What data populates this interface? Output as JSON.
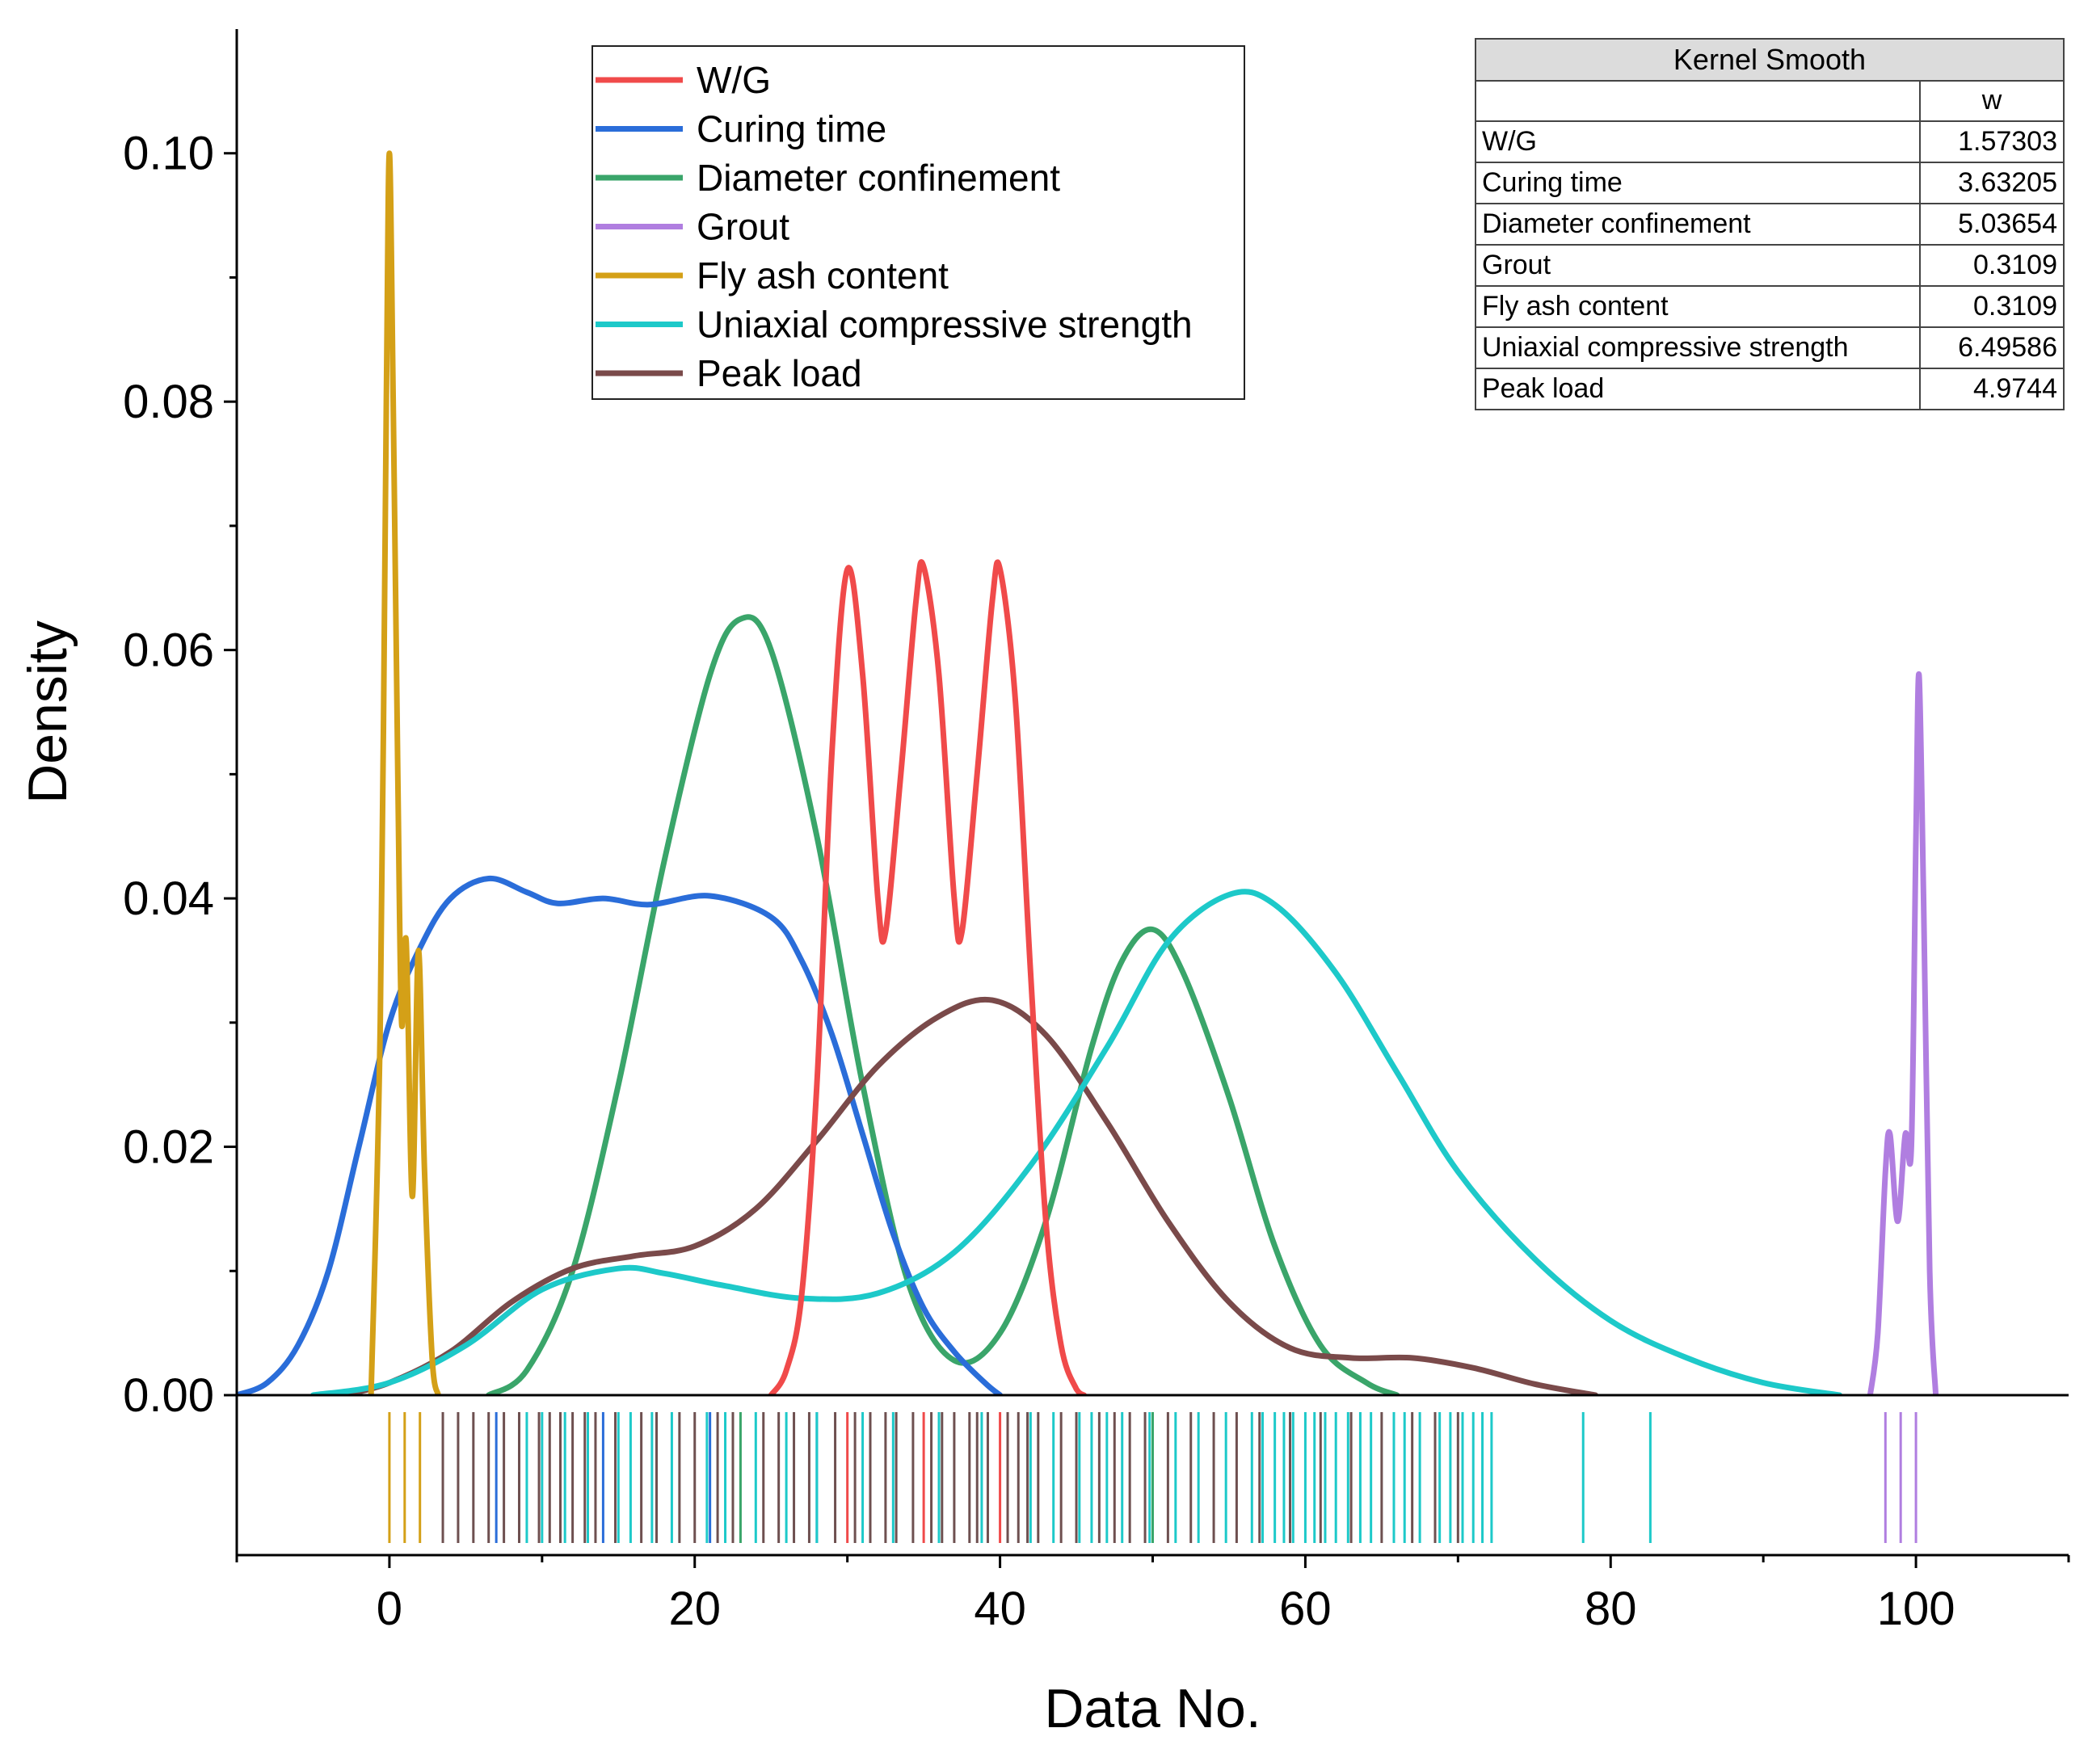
{
  "chart_data": {
    "type": "line",
    "title": "",
    "xlabel": "Data No.",
    "ylabel": "Density",
    "xlim": [
      -10,
      110
    ],
    "ylim": [
      0,
      0.11
    ],
    "x_ticks": [
      0,
      20,
      40,
      60,
      80,
      100
    ],
    "x_tick_labels": [
      "0",
      "20",
      "40",
      "60",
      "80",
      "100"
    ],
    "y_ticks": [
      0,
      0.02,
      0.04,
      0.06,
      0.08,
      0.1
    ],
    "y_tick_labels": [
      "0.00",
      "0.02",
      "0.04",
      "0.06",
      "0.08",
      "0.10"
    ],
    "legend_position": "top-center",
    "series": [
      {
        "name": "W/G",
        "color": "#f04a4a",
        "points": [
          [
            25,
            0
          ],
          [
            26,
            0.002
          ],
          [
            27,
            0.008
          ],
          [
            28,
            0.025
          ],
          [
            29,
            0.052
          ],
          [
            30,
            0.0665
          ],
          [
            31,
            0.058
          ],
          [
            32,
            0.04
          ],
          [
            32.5,
            0.0373
          ],
          [
            33.5,
            0.05
          ],
          [
            34.5,
            0.064
          ],
          [
            35,
            0.0667
          ],
          [
            36,
            0.058
          ],
          [
            37,
            0.04
          ],
          [
            37.5,
            0.0373
          ],
          [
            38.5,
            0.05
          ],
          [
            39.5,
            0.064
          ],
          [
            40,
            0.0665
          ],
          [
            41,
            0.056
          ],
          [
            42,
            0.034
          ],
          [
            43,
            0.014
          ],
          [
            44,
            0.004
          ],
          [
            45,
            0.0005
          ],
          [
            45.5,
            0
          ]
        ]
      },
      {
        "name": "Curing time",
        "color": "#2a6dd9",
        "points": [
          [
            -10,
            0
          ],
          [
            -8,
            0.001
          ],
          [
            -6,
            0.004
          ],
          [
            -4,
            0.01
          ],
          [
            -2,
            0.02
          ],
          [
            0,
            0.03
          ],
          [
            2,
            0.036
          ],
          [
            4,
            0.04
          ],
          [
            6.5,
            0.0416
          ],
          [
            9,
            0.0405
          ],
          [
            11,
            0.0396
          ],
          [
            14,
            0.04
          ],
          [
            17,
            0.0395
          ],
          [
            21,
            0.0402
          ],
          [
            25,
            0.0385
          ],
          [
            27,
            0.035
          ],
          [
            29,
            0.029
          ],
          [
            31,
            0.021
          ],
          [
            33,
            0.013
          ],
          [
            35,
            0.007
          ],
          [
            37,
            0.0035
          ],
          [
            39,
            0.001
          ],
          [
            40,
            0
          ]
        ]
      },
      {
        "name": "Diameter confinement",
        "color": "#3aa56a",
        "points": [
          [
            6.5,
            0
          ],
          [
            9,
            0.002
          ],
          [
            12,
            0.01
          ],
          [
            15,
            0.025
          ],
          [
            18,
            0.043
          ],
          [
            21,
            0.058
          ],
          [
            23,
            0.0625
          ],
          [
            25,
            0.06
          ],
          [
            28,
            0.045
          ],
          [
            31,
            0.025
          ],
          [
            34,
            0.009
          ],
          [
            37,
            0.0028
          ],
          [
            40,
            0.005
          ],
          [
            43,
            0.014
          ],
          [
            46,
            0.028
          ],
          [
            48,
            0.035
          ],
          [
            50,
            0.0375
          ],
          [
            52,
            0.034
          ],
          [
            55,
            0.024
          ],
          [
            58,
            0.012
          ],
          [
            61,
            0.004
          ],
          [
            64,
            0.001
          ],
          [
            66,
            0
          ]
        ]
      },
      {
        "name": "Grout",
        "color": "#b07ee0",
        "points": [
          [
            97,
            0
          ],
          [
            97.5,
            0.005
          ],
          [
            98,
            0.018
          ],
          [
            98.3,
            0.021
          ],
          [
            98.8,
            0.014
          ],
          [
            99.3,
            0.021
          ],
          [
            99.7,
            0.02
          ],
          [
            100,
            0.045
          ],
          [
            100.2,
            0.058
          ],
          [
            100.5,
            0.04
          ],
          [
            100.9,
            0.01
          ],
          [
            101.3,
            0
          ]
        ]
      },
      {
        "name": "Fly ash content",
        "color": "#d4a017",
        "points": [
          [
            -1.2,
            0
          ],
          [
            -0.6,
            0.03
          ],
          [
            -0.2,
            0.08
          ],
          [
            0,
            0.1
          ],
          [
            0.25,
            0.08
          ],
          [
            0.55,
            0.05
          ],
          [
            0.8,
            0.03
          ],
          [
            1.1,
            0.0365
          ],
          [
            1.5,
            0.016
          ],
          [
            1.9,
            0.0358
          ],
          [
            2.3,
            0.018
          ],
          [
            2.8,
            0.003
          ],
          [
            3.2,
            0
          ]
        ]
      },
      {
        "name": "Uniaxial compressive strength",
        "color": "#1dc9c9",
        "points": [
          [
            -5,
            0
          ],
          [
            0,
            0.001
          ],
          [
            5,
            0.004
          ],
          [
            10,
            0.0085
          ],
          [
            15,
            0.0102
          ],
          [
            18,
            0.0098
          ],
          [
            22,
            0.0088
          ],
          [
            27,
            0.0078
          ],
          [
            32,
            0.0082
          ],
          [
            37,
            0.0115
          ],
          [
            42,
            0.0185
          ],
          [
            47,
            0.028
          ],
          [
            51,
            0.0365
          ],
          [
            55,
            0.0403
          ],
          [
            58,
            0.0395
          ],
          [
            62,
            0.034
          ],
          [
            66,
            0.026
          ],
          [
            70,
            0.018
          ],
          [
            75,
            0.011
          ],
          [
            80,
            0.006
          ],
          [
            85,
            0.003
          ],
          [
            90,
            0.001
          ],
          [
            95,
            0
          ]
        ]
      },
      {
        "name": "Peak load",
        "color": "#7a4a4a",
        "points": [
          [
            -3,
            0
          ],
          [
            0,
            0.001
          ],
          [
            4,
            0.0035
          ],
          [
            8,
            0.0075
          ],
          [
            12,
            0.0102
          ],
          [
            16,
            0.0112
          ],
          [
            20,
            0.012
          ],
          [
            24,
            0.015
          ],
          [
            28,
            0.0205
          ],
          [
            32,
            0.0265
          ],
          [
            36,
            0.0305
          ],
          [
            39.5,
            0.0318
          ],
          [
            43,
            0.029
          ],
          [
            47,
            0.022
          ],
          [
            51,
            0.014
          ],
          [
            55,
            0.0075
          ],
          [
            59,
            0.0038
          ],
          [
            63,
            0.003
          ],
          [
            67,
            0.003
          ],
          [
            71,
            0.0022
          ],
          [
            75,
            0.0009
          ],
          [
            79,
            0
          ]
        ]
      }
    ],
    "rug": [
      {
        "series": "Fly ash content",
        "color": "#d4a017",
        "x": [
          0,
          1,
          2
        ]
      },
      {
        "series": "Grout",
        "color": "#b07ee0",
        "x": [
          98,
          99,
          100
        ]
      },
      {
        "series": "W/G",
        "color": "#f04a4a",
        "x": [
          30,
          35,
          40
        ]
      },
      {
        "series": "Curing time",
        "color": "#2a6dd9",
        "x": [
          7,
          14,
          21,
          28
        ]
      },
      {
        "series": "Diameter confinement",
        "color": "#3aa56a",
        "x": [
          23,
          50
        ]
      },
      {
        "series": "Peak load",
        "color": "#6e5050",
        "x": [
          3.5,
          4.5,
          5.5,
          6.5,
          7.5,
          8.5,
          9.8,
          10.5,
          11.2,
          12,
          12.8,
          13.5,
          14.8,
          16.5,
          17.5,
          19,
          20,
          21.5,
          22.5,
          24.5,
          25.5,
          26.5,
          27.5,
          29.2,
          30.5,
          31.5,
          32.5,
          33.2,
          34.3,
          35.5,
          36.2,
          37,
          38,
          38.5,
          39.2,
          40.5,
          41.2,
          41.8,
          42.5,
          44,
          45,
          46.5,
          47.5,
          48.5,
          49.5,
          51,
          52.5,
          54,
          55.5,
          57,
          59,
          61,
          63,
          65,
          67,
          68.5,
          70
        ]
      },
      {
        "series": "Uniaxial compressive strength",
        "color": "#1dc9c9",
        "x": [
          9,
          10,
          11.5,
          13,
          15,
          15.8,
          17.2,
          18.5,
          20.8,
          22,
          24,
          26,
          28,
          31,
          33,
          36,
          38.8,
          42,
          43.5,
          45.2,
          46,
          47,
          48,
          49.8,
          51.5,
          53,
          54.8,
          56.5,
          57.2,
          58,
          58.6,
          59.2,
          60,
          60.6,
          61.3,
          62,
          62.8,
          63.6,
          64.3,
          65.8,
          66.5,
          67.5,
          68.8,
          69.5,
          70.3,
          71,
          71.6,
          72.2,
          78.2,
          82.6
        ]
      }
    ],
    "inset_table": {
      "title": "Kernel Smooth",
      "column_header": "w",
      "rows": [
        {
          "label": "W/G",
          "value": "1.57303"
        },
        {
          "label": "Curing time",
          "value": "3.63205"
        },
        {
          "label": "Diameter confinement",
          "value": "5.03654"
        },
        {
          "label": "Grout",
          "value": "0.3109"
        },
        {
          "label": "Fly ash content",
          "value": "0.3109"
        },
        {
          "label": "Uniaxial compressive strength",
          "value": "6.49586"
        },
        {
          "label": "Peak load",
          "value": "4.9744"
        }
      ]
    }
  }
}
